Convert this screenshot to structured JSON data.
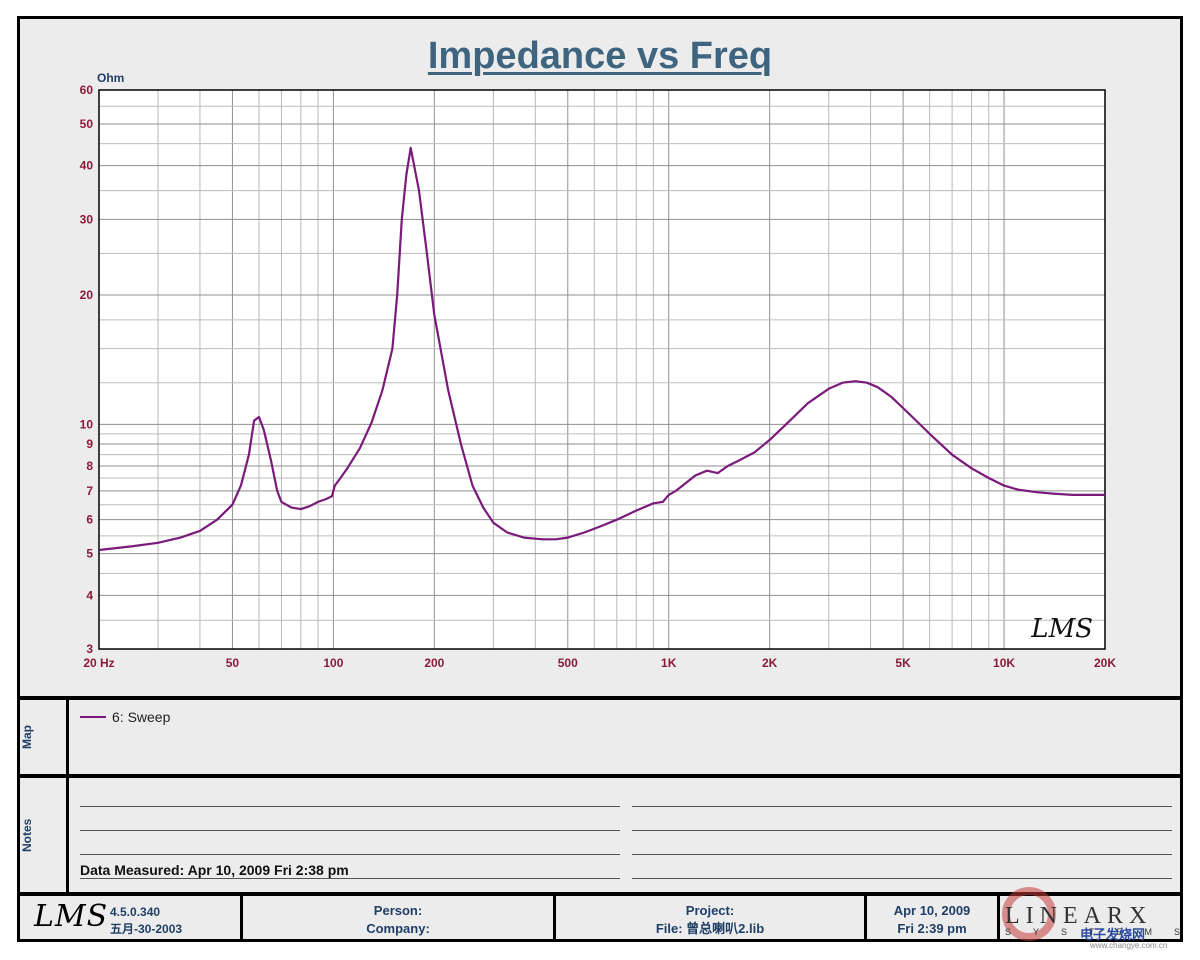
{
  "chart_data": {
    "type": "line",
    "title": "Impedance vs Freq",
    "ylabel": "Ohm",
    "xscale": "log",
    "yscale": "log",
    "xlim": [
      20,
      20000
    ],
    "ylim": [
      3,
      60
    ],
    "grid": true,
    "x_tick_labels": [
      {
        "value": 20,
        "label": "20  Hz"
      },
      {
        "value": 50,
        "label": "50"
      },
      {
        "value": 100,
        "label": "100"
      },
      {
        "value": 200,
        "label": "200"
      },
      {
        "value": 500,
        "label": "500"
      },
      {
        "value": 1000,
        "label": "1K"
      },
      {
        "value": 2000,
        "label": "2K"
      },
      {
        "value": 5000,
        "label": "5K"
      },
      {
        "value": 10000,
        "label": "10K"
      },
      {
        "value": 20000,
        "label": "20K"
      }
    ],
    "y_tick_labels": [
      {
        "value": 60,
        "label": "60"
      },
      {
        "value": 50,
        "label": "50"
      },
      {
        "value": 40,
        "label": "40"
      },
      {
        "value": 30,
        "label": "30"
      },
      {
        "value": 20,
        "label": "20"
      },
      {
        "value": 10,
        "label": "10"
      },
      {
        "value": 9,
        "label": "9"
      },
      {
        "value": 8,
        "label": "8"
      },
      {
        "value": 7,
        "label": "7"
      },
      {
        "value": 6,
        "label": "6"
      },
      {
        "value": 5,
        "label": "5"
      },
      {
        "value": 4,
        "label": "4"
      },
      {
        "value": 3,
        "label": "3"
      }
    ],
    "series": [
      {
        "name": "6: Sweep",
        "color": "#7a1a7a",
        "x": [
          20,
          25,
          30,
          35,
          40,
          45,
          50,
          53,
          56,
          58,
          60,
          62,
          65,
          68,
          70,
          75,
          80,
          85,
          90,
          95,
          99,
          101,
          105,
          110,
          120,
          130,
          140,
          150,
          155,
          160,
          165,
          170,
          180,
          190,
          200,
          220,
          240,
          260,
          280,
          300,
          330,
          370,
          420,
          460,
          500,
          560,
          630,
          700,
          800,
          900,
          960,
          1000,
          1050,
          1100,
          1200,
          1300,
          1400,
          1500,
          1600,
          1800,
          2000,
          2300,
          2600,
          3000,
          3300,
          3600,
          3900,
          4200,
          4600,
          5200,
          6000,
          7000,
          8000,
          9000,
          10000,
          11000,
          12500,
          14000,
          16000,
          18000,
          20000
        ],
        "y": [
          5.1,
          5.2,
          5.3,
          5.45,
          5.65,
          6.0,
          6.5,
          7.2,
          8.5,
          10.2,
          10.4,
          9.7,
          8.3,
          7.0,
          6.6,
          6.4,
          6.35,
          6.45,
          6.6,
          6.7,
          6.8,
          7.2,
          7.5,
          7.9,
          8.8,
          10.1,
          12.0,
          15.0,
          20.0,
          30.0,
          38.0,
          44.0,
          35.0,
          25.0,
          18.0,
          12.0,
          9.0,
          7.2,
          6.4,
          5.9,
          5.6,
          5.45,
          5.4,
          5.4,
          5.45,
          5.6,
          5.8,
          6.0,
          6.3,
          6.55,
          6.6,
          6.85,
          7.0,
          7.2,
          7.6,
          7.8,
          7.7,
          8.0,
          8.2,
          8.6,
          9.2,
          10.2,
          11.2,
          12.1,
          12.5,
          12.6,
          12.5,
          12.2,
          11.6,
          10.6,
          9.5,
          8.5,
          7.9,
          7.5,
          7.2,
          7.05,
          6.95,
          6.9,
          6.85,
          6.85,
          6.85
        ]
      }
    ],
    "watermark": "LMS"
  },
  "legend": {
    "label": "6: Sweep"
  },
  "map_label": "Map",
  "notes_label": "Notes",
  "data_measured": "Data Measured: Apr 10, 2009  Fri  2:38 pm",
  "footer": {
    "logo": "LMS",
    "version": "4.5.0.340",
    "version_date": "五月-30-2003",
    "person": "Person:",
    "company": "Company:",
    "project": "Project:",
    "file": "File: 曾总喇叭2.lib",
    "date": "Apr 10, 2009",
    "time": "Fri  2:39 pm",
    "brand": "LINEARX",
    "brand_sub": "SYSTEMS",
    "site_watermark": "电子发烧网",
    "site_url": "www.changye.com.cn"
  },
  "colors": {
    "curve": "#7a1a7a",
    "tick_labels": "#8a1a3a",
    "title": "#3f6480",
    "panel_bg": "#ececec",
    "grid": "#a8a8a8"
  }
}
